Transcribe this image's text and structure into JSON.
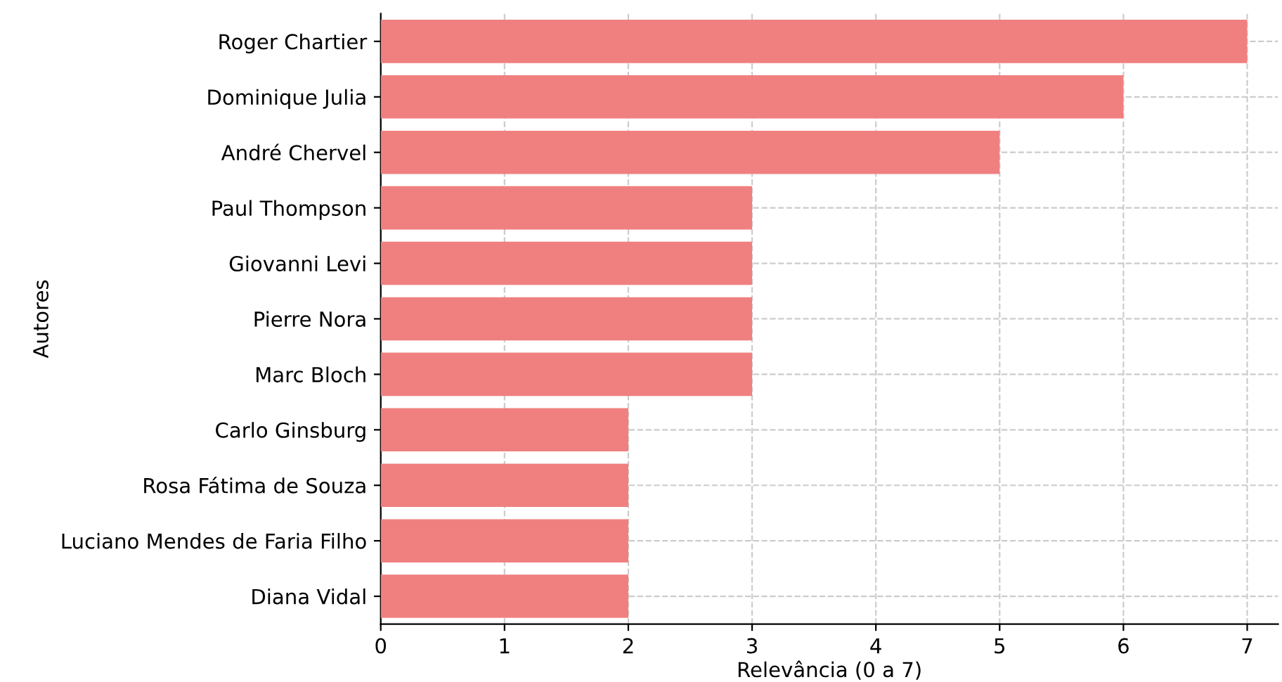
{
  "chart_data": {
    "type": "bar",
    "orientation": "horizontal",
    "xlabel": "Relevância (0 a 7)",
    "ylabel": "Autores",
    "categories": [
      "Roger Chartier",
      "Dominique Julia",
      "André Chervel",
      "Paul Thompson",
      "Giovanni Levi",
      "Pierre Nora",
      "Marc Bloch",
      "Carlo Ginsburg",
      "Rosa Fátima de Souza",
      "Luciano Mendes de Faria Filho",
      "Diana Vidal"
    ],
    "values": [
      7,
      6,
      5,
      3,
      3,
      3,
      3,
      2,
      2,
      2,
      2
    ],
    "color": "#f08080",
    "xlim": [
      0,
      7.25
    ],
    "xticks": [
      0,
      1,
      2,
      3,
      4,
      5,
      6,
      7
    ],
    "grid": true,
    "line_style": "dashed"
  }
}
